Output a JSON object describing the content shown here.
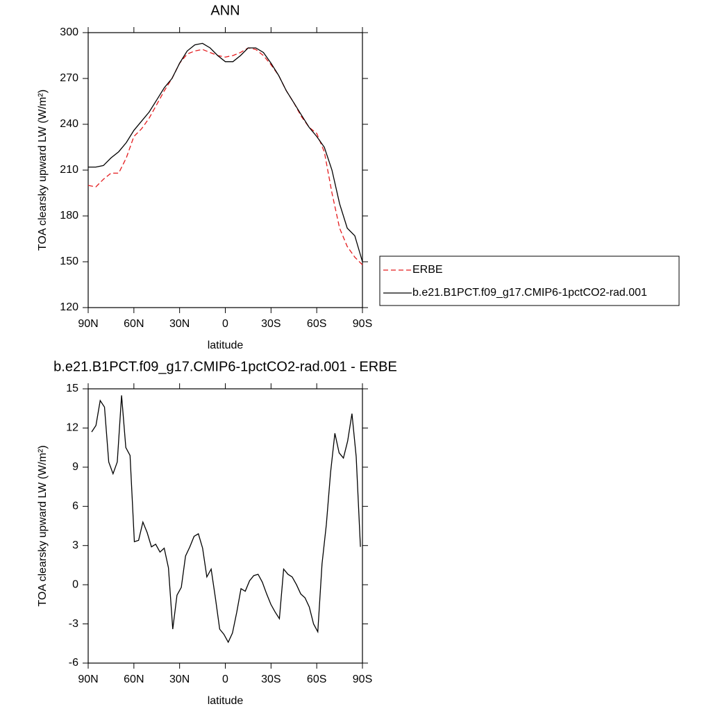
{
  "chart_data": [
    {
      "type": "line",
      "title": "ANN",
      "x_label": "latitude",
      "y_label": "TOA clearsky upward LW (W/m²)",
      "x": [
        90,
        85,
        80,
        75,
        70,
        65,
        60,
        55,
        50,
        45,
        40,
        35,
        30,
        25,
        20,
        15,
        10,
        5,
        0,
        -5,
        -10,
        -15,
        -20,
        -25,
        -30,
        -35,
        -40,
        -45,
        -50,
        -55,
        -60,
        -65,
        -70,
        -75,
        -80,
        -85,
        -90
      ],
      "series": [
        {
          "name": "ERBE",
          "color": "#e41a1c",
          "linestyle": "dashed",
          "values": [
            200,
            199,
            204,
            208,
            208,
            218,
            232,
            237,
            244,
            253,
            262,
            270,
            280,
            286,
            288,
            289,
            287,
            285,
            284,
            285,
            287,
            290,
            289,
            285,
            279,
            272,
            262,
            254,
            245,
            238,
            234,
            222,
            195,
            172,
            160,
            153,
            148
          ]
        },
        {
          "name": "b.e21.B1PCT.f09_g17.CMIP6-1pctCO2-rad.001",
          "color": "#000000",
          "linestyle": "solid",
          "values": [
            212,
            212,
            213,
            218,
            222,
            228,
            236,
            242,
            248,
            256,
            264,
            270,
            280,
            288,
            292,
            293,
            290,
            285,
            281,
            281,
            285,
            290,
            290,
            287,
            280,
            272,
            262,
            254,
            246,
            238,
            232,
            225,
            210,
            188,
            172,
            167,
            150
          ]
        }
      ],
      "xlim": [
        90,
        -90
      ],
      "xticks": [
        {
          "value": 90,
          "label": "90N"
        },
        {
          "value": 60,
          "label": "60N"
        },
        {
          "value": 30,
          "label": "30N"
        },
        0,
        {
          "value": -30,
          "label": "30S"
        },
        {
          "value": -60,
          "label": "60S"
        },
        {
          "value": -90,
          "label": "90S"
        }
      ],
      "ylim": [
        120,
        300
      ],
      "yticks": [
        120,
        150,
        180,
        210,
        240,
        270,
        300
      ],
      "legend": "right"
    },
    {
      "type": "line",
      "title": "b.e21.B1PCT.f09_g17.CMIP6-1pctCO2-rad.001 - ERBE",
      "x_label": "latitude",
      "y_label": "TOA clearsky upward LW (W/m²)",
      "x": [
        87.7,
        84.9,
        82.1,
        79.3,
        76.5,
        73.7,
        70.9,
        68.1,
        65.3,
        62.5,
        59.7,
        56.9,
        54.1,
        51.3,
        48.5,
        45.7,
        42.9,
        40.1,
        37.3,
        34.5,
        31.7,
        28.9,
        26.1,
        23.3,
        20.5,
        17.7,
        14.9,
        12.1,
        9.3,
        6.5,
        3.7,
        0.9,
        -1.9,
        -4.7,
        -7.5,
        -10.3,
        -13.1,
        -15.9,
        -18.7,
        -21.5,
        -24.3,
        -27.1,
        -29.9,
        -32.7,
        -35.5,
        -38.3,
        -41.1,
        -43.9,
        -46.7,
        -49.5,
        -52.3,
        -55.1,
        -57.9,
        -60.7,
        -63.5,
        -66.3,
        -69.1,
        -71.9,
        -74.7,
        -77.5,
        -80.3,
        -83.1,
        -85.9,
        -88.7
      ],
      "values": [
        11.7,
        12.2,
        14.1,
        13.6,
        9.4,
        8.5,
        9.4,
        14.5,
        10.5,
        9.9,
        3.3,
        3.4,
        4.8,
        4.0,
        2.9,
        3.1,
        2.5,
        2.8,
        1.3,
        -3.4,
        -0.8,
        -0.2,
        2.2,
        2.9,
        3.7,
        3.9,
        2.8,
        0.6,
        1.2,
        -1.0,
        -3.4,
        -3.8,
        -4.4,
        -3.7,
        -2.1,
        -0.3,
        -0.5,
        0.3,
        0.7,
        0.8,
        0.2,
        -0.7,
        -1.5,
        -2.1,
        -2.6,
        1.2,
        0.8,
        0.6,
        0.0,
        -0.7,
        -1.0,
        -1.7,
        -3.0,
        -3.6,
        1.6,
        4.6,
        8.6,
        11.6,
        10.1,
        9.7,
        11.0,
        13.1,
        9.8,
        2.9
      ],
      "color": "#000000",
      "xlim": [
        90,
        -90
      ],
      "xticks": [
        {
          "value": 90,
          "label": "90N"
        },
        {
          "value": 60,
          "label": "60N"
        },
        {
          "value": 30,
          "label": "30N"
        },
        0,
        {
          "value": -30,
          "label": "30S"
        },
        {
          "value": -60,
          "label": "60S"
        },
        {
          "value": -90,
          "label": "90S"
        }
      ],
      "ylim": [
        -6,
        15
      ],
      "yticks": [
        -6,
        -3,
        0,
        3,
        6,
        9,
        12,
        15
      ]
    }
  ]
}
